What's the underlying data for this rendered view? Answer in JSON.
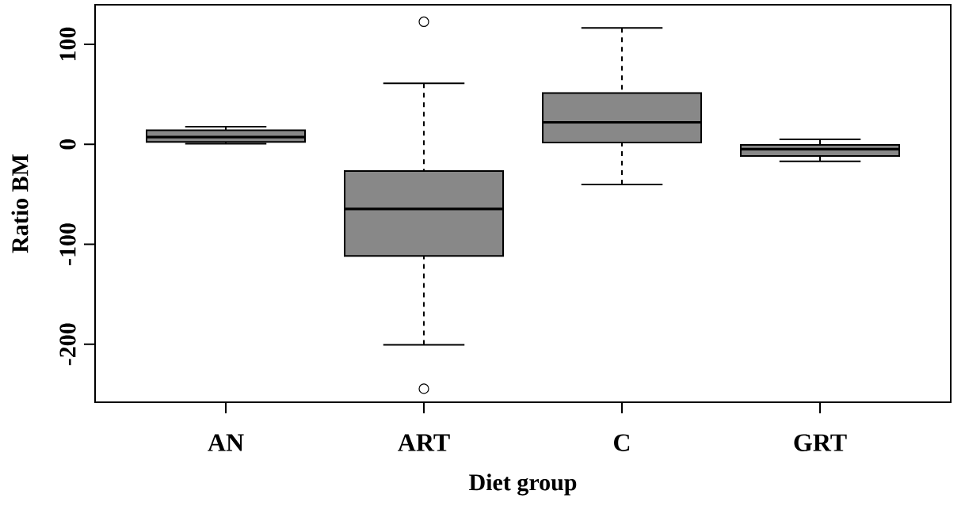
{
  "chart_data": {
    "type": "box",
    "xlabel": "Diet group",
    "ylabel": "Ratio BM",
    "categories": [
      "AN",
      "ART",
      "C",
      "GRT"
    ],
    "boxes": [
      {
        "low": 0.6,
        "q1": 2.4,
        "median": 7.3,
        "q3": 14,
        "high": 17.7
      },
      {
        "low": -200.6,
        "q1": -111.6,
        "median": -64.6,
        "q3": -26.8,
        "high": 61,
        "outliers": [
          122.6,
          -244.5
        ]
      },
      {
        "low": -40.2,
        "q1": 1.8,
        "median": 22,
        "q3": 51.2,
        "high": 116.5
      },
      {
        "low": -17,
        "q1": -11.6,
        "median": -4.9,
        "q3": -0.6,
        "high": 4.9
      }
    ],
    "color": "#888888",
    "marker": "circle",
    "ylim": [
      -258,
      139.6
    ],
    "yticks": [
      -200,
      -100,
      0,
      100
    ]
  }
}
